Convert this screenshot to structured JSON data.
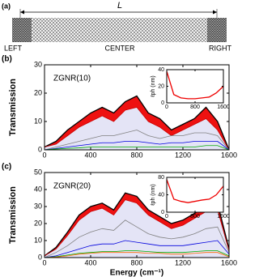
{
  "panel_a": {
    "label": "(a)",
    "length": "L",
    "left": "LEFT",
    "center": "CENTER",
    "right": "RIGHT"
  },
  "chart_data": [
    {
      "type": "line",
      "label": "(b)",
      "annotation": "ZGNR(10)",
      "ylabel": "Transmission",
      "x": [
        0,
        100,
        200,
        300,
        400,
        500,
        600,
        700,
        800,
        900,
        1000,
        1100,
        1200,
        1300,
        1400,
        1500,
        1600
      ],
      "xlim": [
        0,
        1600
      ],
      "xticks": [
        0,
        400,
        800,
        1200,
        1600
      ],
      "ylim": [
        0,
        30
      ],
      "yticks": [
        0,
        10,
        20,
        30
      ],
      "series": [
        {
          "color": "#000000",
          "fill": "#e4e4f6",
          "values": [
            1,
            3,
            7,
            10,
            13,
            15,
            13,
            17,
            19,
            13,
            11,
            7,
            9,
            11,
            15,
            10,
            0
          ]
        },
        {
          "color": "#cc0000",
          "fill": "#ee1111",
          "values": [
            1,
            2,
            5,
            8,
            10,
            12,
            10,
            14,
            15,
            10,
            8,
            5,
            7,
            9,
            11,
            7,
            0
          ]
        },
        {
          "color": "#808080",
          "values": [
            0,
            1,
            2,
            3,
            4,
            5,
            5,
            6,
            7,
            5,
            4,
            5,
            5,
            6,
            6,
            5,
            0
          ]
        },
        {
          "color": "#0000dd",
          "values": [
            0,
            0.5,
            1,
            1.5,
            2,
            2.5,
            2.5,
            3,
            3,
            2.5,
            2,
            2.5,
            2.5,
            3,
            3,
            3,
            0
          ]
        },
        {
          "color": "#00aa00",
          "values": [
            0,
            0.3,
            0.5,
            0.7,
            1,
            1,
            1,
            1,
            1,
            1,
            1,
            1,
            1,
            1,
            1.5,
            1.5,
            0
          ]
        }
      ]
    },
    {
      "type": "line",
      "ylabel": "ℓph (nm)",
      "x": [
        0,
        200,
        400,
        600,
        800,
        1000,
        1200,
        1400,
        1600
      ],
      "xlim": [
        0,
        1600
      ],
      "xticks": [
        0,
        800,
        1600
      ],
      "ylim": [
        0,
        40
      ],
      "yticks": [
        0,
        20,
        40
      ],
      "series": [
        {
          "color": "#ee0000",
          "values": [
            38,
            10,
            6,
            5,
            5,
            6,
            7,
            12,
            20
          ]
        }
      ]
    },
    {
      "type": "line",
      "label": "(c)",
      "annotation": "ZGNR(20)",
      "ylabel": "Transmission",
      "xlabel": "Energy (cm⁻¹)",
      "x": [
        0,
        100,
        200,
        300,
        400,
        500,
        600,
        700,
        800,
        900,
        1000,
        1100,
        1200,
        1300,
        1400,
        1500,
        1600
      ],
      "xlim": [
        0,
        1600
      ],
      "xticks": [
        0,
        400,
        800,
        1200,
        1600
      ],
      "ylim": [
        0,
        50
      ],
      "yticks": [
        0,
        10,
        20,
        30,
        40,
        50
      ],
      "series": [
        {
          "color": "#000000",
          "fill": "#e4e4f6",
          "values": [
            1,
            6,
            15,
            25,
            30,
            32,
            28,
            38,
            36,
            28,
            24,
            20,
            22,
            26,
            30,
            32,
            5
          ]
        },
        {
          "color": "#cc0000",
          "fill": "#ee1111",
          "values": [
            1,
            5,
            13,
            22,
            27,
            29,
            25,
            34,
            32,
            25,
            21,
            17,
            19,
            23,
            27,
            28,
            4
          ]
        },
        {
          "color": "#808080",
          "values": [
            0,
            3,
            7,
            12,
            15,
            17,
            16,
            22,
            18,
            14,
            12,
            11,
            12,
            14,
            17,
            18,
            3
          ]
        },
        {
          "color": "#0000dd",
          "values": [
            0,
            1,
            3,
            5,
            7,
            8,
            8,
            10,
            9,
            8,
            7,
            7,
            7,
            8,
            9,
            10,
            2
          ]
        },
        {
          "color": "#00aa00",
          "values": [
            0,
            0.5,
            1.5,
            2.5,
            3,
            3.5,
            3.5,
            4,
            4,
            3.5,
            3,
            3,
            3,
            3.5,
            4,
            4,
            1
          ]
        },
        {
          "color": "#ff6600",
          "values": [
            0,
            0.3,
            1,
            2,
            2.5,
            3,
            3,
            3,
            3,
            2.5,
            2.5,
            2,
            2,
            2.5,
            3,
            3,
            0.5
          ]
        }
      ]
    },
    {
      "type": "line",
      "ylabel": "ℓph (nm)",
      "x": [
        0,
        200,
        400,
        600,
        800,
        1000,
        1200,
        1400,
        1600
      ],
      "xlim": [
        0,
        1600
      ],
      "xticks": [
        0,
        800,
        1600
      ],
      "ylim": [
        0,
        80
      ],
      "yticks": [
        0,
        40,
        80
      ],
      "series": [
        {
          "color": "#ee0000",
          "values": [
            75,
            30,
            25,
            22,
            25,
            28,
            30,
            40,
            60
          ]
        }
      ]
    }
  ]
}
